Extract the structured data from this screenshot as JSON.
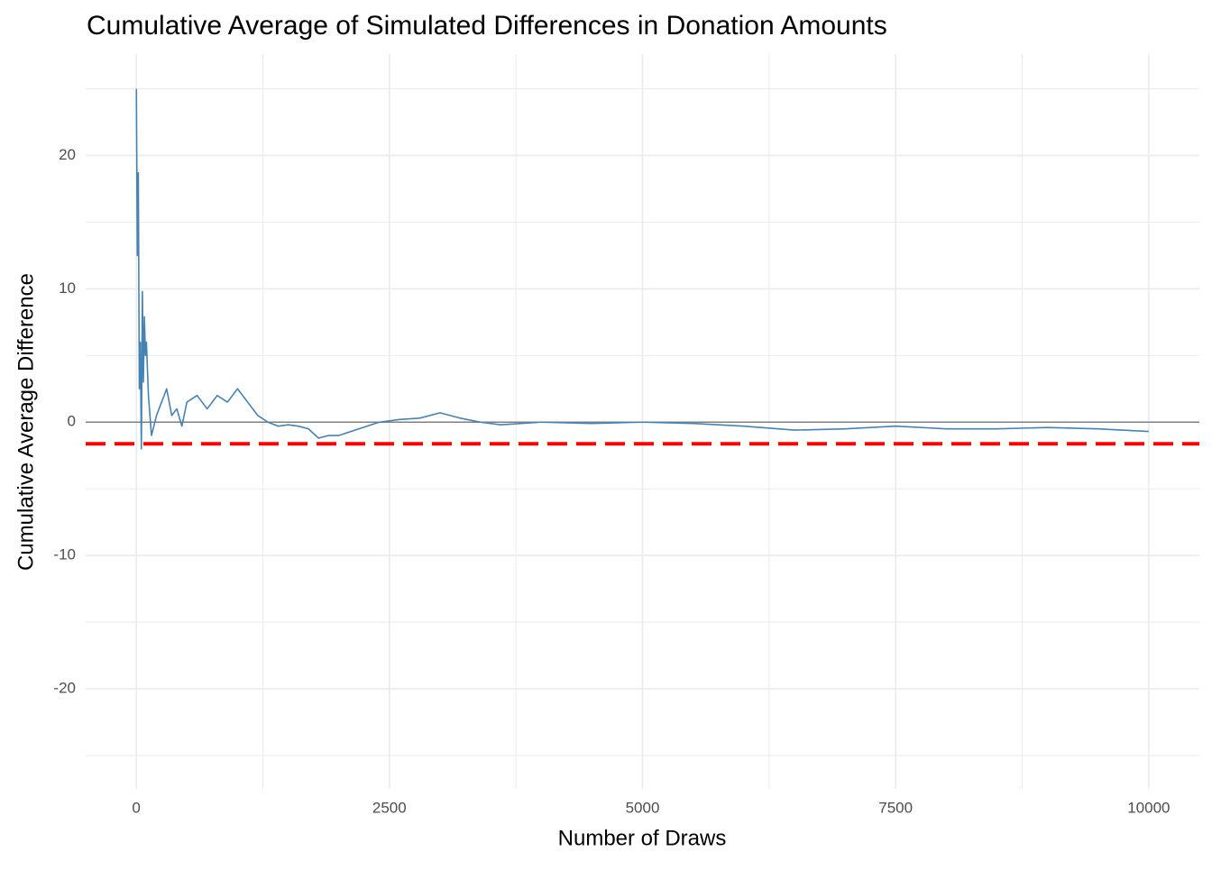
{
  "chart_data": {
    "type": "line",
    "title": "Cumulative Average of Simulated Differences in Donation Amounts",
    "x_label": "Number of Draws",
    "y_label": "Cumulative Average Difference",
    "x": [
      1,
      10,
      20,
      30,
      40,
      50,
      60,
      70,
      80,
      90,
      100,
      120,
      150,
      200,
      250,
      300,
      350,
      400,
      450,
      500,
      600,
      700,
      800,
      900,
      1000,
      1100,
      1200,
      1300,
      1400,
      1500,
      1600,
      1700,
      1800,
      1900,
      2000,
      2200,
      2400,
      2600,
      2800,
      3000,
      3200,
      3400,
      3600,
      3800,
      4000,
      4500,
      5000,
      5500,
      6000,
      6500,
      7000,
      7500,
      8000,
      8500,
      9000,
      9500,
      10000
    ],
    "values": [
      25,
      12.5,
      18.7,
      2.5,
      6,
      -2,
      9.8,
      3,
      7.9,
      5,
      6,
      2,
      -1,
      0.5,
      1.5,
      2.5,
      0.5,
      1,
      -0.3,
      1.5,
      2,
      1,
      2,
      1.5,
      2.5,
      1.5,
      0.5,
      0,
      -0.3,
      -0.2,
      -0.3,
      -0.5,
      -1.2,
      -1,
      -1,
      -0.5,
      0,
      0.2,
      0.3,
      0.7,
      0.3,
      0,
      -0.2,
      -0.1,
      0,
      -0.1,
      0,
      -0.1,
      -0.3,
      -0.6,
      -0.5,
      -0.3,
      -0.5,
      -0.5,
      -0.4,
      -0.5,
      -0.7
    ],
    "color": "#4682b4",
    "xlim": [
      -500,
      10500
    ],
    "ylim": [
      -27.5,
      27.6
    ],
    "xticks": [
      0,
      2500,
      5000,
      7500,
      10000
    ],
    "yticks": [
      -20,
      -10,
      0,
      10,
      20
    ],
    "xminor": [
      1250,
      3750,
      6250,
      8750
    ],
    "yminor": [
      -25,
      -15,
      -5,
      5,
      15,
      25
    ],
    "grid": true,
    "reference_lines": [
      {
        "value": 0,
        "color": "#808080",
        "style": "solid"
      },
      {
        "value": -1.62,
        "color": "#ff0000",
        "style": "dashed"
      }
    ]
  }
}
